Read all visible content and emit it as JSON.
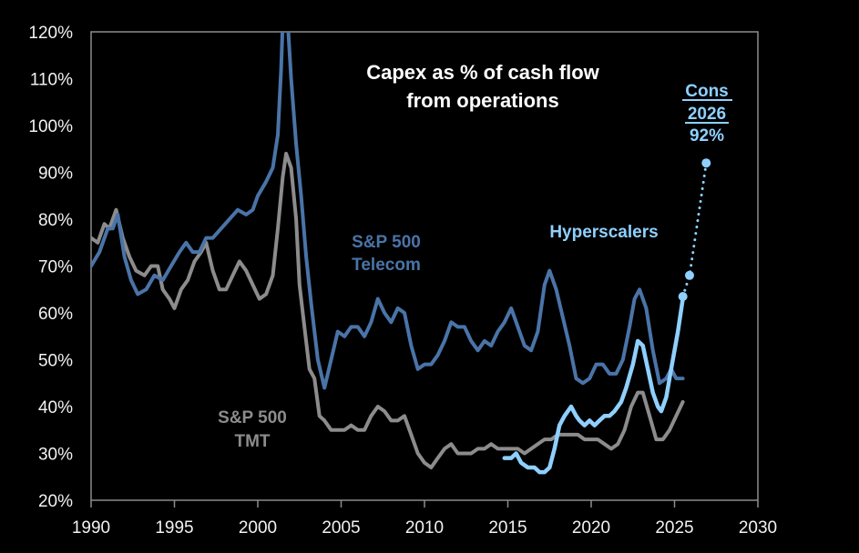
{
  "chart_data": {
    "type": "line",
    "title": [
      "Capex as % of cash flow",
      "from operations"
    ],
    "xlabel": "",
    "ylabel": "",
    "xlim": [
      1990,
      2030
    ],
    "ylim": [
      20,
      120
    ],
    "x_ticks": [
      1990,
      1995,
      2000,
      2005,
      2010,
      2015,
      2020,
      2025,
      2030
    ],
    "x_tick_labels": [
      "1990",
      "1995",
      "2000",
      "2005",
      "2010",
      "2015",
      "2020",
      "2025",
      "2030"
    ],
    "y_ticks": [
      20,
      30,
      40,
      50,
      60,
      70,
      80,
      90,
      100,
      110,
      120
    ],
    "y_tick_labels": [
      "20%",
      "30%",
      "40%",
      "50%",
      "60%",
      "70%",
      "80%",
      "90%",
      "100%",
      "110%",
      "120%"
    ],
    "grid": false,
    "colors": {
      "telecom": "#4a74a8",
      "tmt": "#8c8c8c",
      "hyperscalers": "#8fd0ff",
      "background": "#000000",
      "axis": "#8c8c8c"
    },
    "series": [
      {
        "name": "S&P 500 Telecom",
        "label_lines": [
          "S&P 500",
          "Telecom"
        ],
        "points": [
          [
            1990.0,
            70
          ],
          [
            1990.5,
            73
          ],
          [
            1991.0,
            78
          ],
          [
            1991.3,
            78
          ],
          [
            1991.6,
            81
          ],
          [
            1992.0,
            72
          ],
          [
            1992.4,
            67
          ],
          [
            1992.8,
            64
          ],
          [
            1993.3,
            65
          ],
          [
            1993.8,
            68
          ],
          [
            1994.3,
            67
          ],
          [
            1994.8,
            70
          ],
          [
            1995.3,
            73
          ],
          [
            1995.7,
            75
          ],
          [
            1996.1,
            73
          ],
          [
            1996.5,
            73
          ],
          [
            1996.9,
            76
          ],
          [
            1997.3,
            76
          ],
          [
            1997.8,
            78
          ],
          [
            1998.3,
            80
          ],
          [
            1998.8,
            82
          ],
          [
            1999.3,
            81
          ],
          [
            1999.7,
            82
          ],
          [
            2000.0,
            85
          ],
          [
            2000.5,
            88
          ],
          [
            2000.9,
            91
          ],
          [
            2001.2,
            98
          ],
          [
            2001.4,
            112
          ],
          [
            2001.5,
            122
          ],
          [
            2001.8,
            122
          ],
          [
            2002.0,
            110
          ],
          [
            2002.3,
            96
          ],
          [
            2002.6,
            85
          ],
          [
            2002.9,
            72
          ],
          [
            2003.2,
            62
          ],
          [
            2003.6,
            50
          ],
          [
            2004.0,
            44
          ],
          [
            2004.4,
            50
          ],
          [
            2004.8,
            56
          ],
          [
            2005.2,
            55
          ],
          [
            2005.6,
            57
          ],
          [
            2006.0,
            57
          ],
          [
            2006.4,
            55
          ],
          [
            2006.8,
            58
          ],
          [
            2007.2,
            63
          ],
          [
            2007.6,
            60
          ],
          [
            2008.0,
            58
          ],
          [
            2008.4,
            61
          ],
          [
            2008.8,
            60
          ],
          [
            2009.2,
            53
          ],
          [
            2009.6,
            48
          ],
          [
            2010.0,
            49
          ],
          [
            2010.4,
            49
          ],
          [
            2010.8,
            51
          ],
          [
            2011.2,
            54
          ],
          [
            2011.6,
            58
          ],
          [
            2012.0,
            57
          ],
          [
            2012.4,
            57
          ],
          [
            2012.8,
            54
          ],
          [
            2013.2,
            52
          ],
          [
            2013.6,
            54
          ],
          [
            2014.0,
            53
          ],
          [
            2014.4,
            56
          ],
          [
            2014.8,
            58
          ],
          [
            2015.2,
            61
          ],
          [
            2015.6,
            57
          ],
          [
            2016.0,
            53
          ],
          [
            2016.4,
            52
          ],
          [
            2016.8,
            56
          ],
          [
            2017.2,
            66
          ],
          [
            2017.5,
            69
          ],
          [
            2017.9,
            65
          ],
          [
            2018.3,
            59
          ],
          [
            2018.7,
            53
          ],
          [
            2019.1,
            46
          ],
          [
            2019.5,
            45
          ],
          [
            2019.9,
            46
          ],
          [
            2020.3,
            49
          ],
          [
            2020.7,
            49
          ],
          [
            2021.1,
            47
          ],
          [
            2021.5,
            47
          ],
          [
            2021.9,
            50
          ],
          [
            2022.3,
            57
          ],
          [
            2022.6,
            63
          ],
          [
            2022.9,
            65
          ],
          [
            2023.3,
            61
          ],
          [
            2023.7,
            52
          ],
          [
            2024.1,
            45
          ],
          [
            2024.5,
            46
          ],
          [
            2024.8,
            48
          ],
          [
            2025.1,
            46
          ],
          [
            2025.5,
            46
          ]
        ]
      },
      {
        "name": "S&P 500 TMT",
        "label_lines": [
          "S&P 500",
          "TMT"
        ],
        "points": [
          [
            1990.0,
            76
          ],
          [
            1990.4,
            75
          ],
          [
            1990.8,
            79
          ],
          [
            1991.1,
            78
          ],
          [
            1991.5,
            82
          ],
          [
            1991.9,
            76
          ],
          [
            1992.3,
            72
          ],
          [
            1992.7,
            69
          ],
          [
            1993.2,
            68
          ],
          [
            1993.6,
            70
          ],
          [
            1994.0,
            70
          ],
          [
            1994.3,
            65
          ],
          [
            1994.7,
            63
          ],
          [
            1995.0,
            61
          ],
          [
            1995.4,
            65
          ],
          [
            1995.8,
            67
          ],
          [
            1996.2,
            71
          ],
          [
            1996.6,
            73
          ],
          [
            1996.9,
            75
          ],
          [
            1997.3,
            69
          ],
          [
            1997.7,
            65
          ],
          [
            1998.1,
            65
          ],
          [
            1998.5,
            68
          ],
          [
            1998.9,
            71
          ],
          [
            1999.3,
            69
          ],
          [
            1999.7,
            66
          ],
          [
            2000.1,
            63
          ],
          [
            2000.5,
            64
          ],
          [
            2000.9,
            68
          ],
          [
            2001.2,
            78
          ],
          [
            2001.5,
            89
          ],
          [
            2001.7,
            94
          ],
          [
            2002.0,
            91
          ],
          [
            2002.3,
            80
          ],
          [
            2002.5,
            66
          ],
          [
            2002.8,
            57
          ],
          [
            2003.1,
            48
          ],
          [
            2003.4,
            46
          ],
          [
            2003.7,
            38
          ],
          [
            2004.0,
            37
          ],
          [
            2004.4,
            35
          ],
          [
            2004.8,
            35
          ],
          [
            2005.2,
            35
          ],
          [
            2005.6,
            36
          ],
          [
            2006.0,
            35
          ],
          [
            2006.4,
            35
          ],
          [
            2006.8,
            38
          ],
          [
            2007.2,
            40
          ],
          [
            2007.6,
            39
          ],
          [
            2008.0,
            37
          ],
          [
            2008.4,
            37
          ],
          [
            2008.8,
            38
          ],
          [
            2009.2,
            34
          ],
          [
            2009.6,
            30
          ],
          [
            2010.0,
            28
          ],
          [
            2010.4,
            27
          ],
          [
            2010.8,
            29
          ],
          [
            2011.2,
            31
          ],
          [
            2011.6,
            32
          ],
          [
            2012.0,
            30
          ],
          [
            2012.4,
            30
          ],
          [
            2012.8,
            30
          ],
          [
            2013.2,
            31
          ],
          [
            2013.6,
            31
          ],
          [
            2014.0,
            32
          ],
          [
            2014.4,
            31
          ],
          [
            2014.8,
            31
          ],
          [
            2015.2,
            31
          ],
          [
            2015.6,
            31
          ],
          [
            2016.0,
            30
          ],
          [
            2016.4,
            31
          ],
          [
            2016.8,
            32
          ],
          [
            2017.2,
            33
          ],
          [
            2017.6,
            33
          ],
          [
            2018.0,
            34
          ],
          [
            2018.4,
            34
          ],
          [
            2018.8,
            34
          ],
          [
            2019.2,
            34
          ],
          [
            2019.6,
            33
          ],
          [
            2020.0,
            33
          ],
          [
            2020.4,
            33
          ],
          [
            2020.8,
            32
          ],
          [
            2021.2,
            31
          ],
          [
            2021.6,
            32
          ],
          [
            2022.0,
            35
          ],
          [
            2022.4,
            40
          ],
          [
            2022.8,
            43
          ],
          [
            2023.1,
            43
          ],
          [
            2023.5,
            38
          ],
          [
            2023.9,
            33
          ],
          [
            2024.3,
            33
          ],
          [
            2024.7,
            35
          ],
          [
            2025.1,
            38
          ],
          [
            2025.5,
            41
          ]
        ]
      },
      {
        "name": "Hyperscalers",
        "label_lines": [
          "Hyperscalers"
        ],
        "points": [
          [
            2014.8,
            29
          ],
          [
            2015.2,
            29
          ],
          [
            2015.5,
            30
          ],
          [
            2015.8,
            28
          ],
          [
            2016.2,
            27
          ],
          [
            2016.6,
            27
          ],
          [
            2016.9,
            26
          ],
          [
            2017.2,
            26
          ],
          [
            2017.5,
            27
          ],
          [
            2017.8,
            31
          ],
          [
            2018.1,
            36
          ],
          [
            2018.4,
            38
          ],
          [
            2018.8,
            40
          ],
          [
            2019.1,
            38
          ],
          [
            2019.3,
            37
          ],
          [
            2019.6,
            36
          ],
          [
            2019.9,
            37
          ],
          [
            2020.2,
            36
          ],
          [
            2020.5,
            37
          ],
          [
            2020.8,
            38
          ],
          [
            2021.1,
            38
          ],
          [
            2021.4,
            39
          ],
          [
            2021.8,
            41
          ],
          [
            2022.1,
            44
          ],
          [
            2022.5,
            49
          ],
          [
            2022.8,
            54
          ],
          [
            2023.1,
            53
          ],
          [
            2023.4,
            48
          ],
          [
            2023.7,
            43
          ],
          [
            2024.0,
            40
          ],
          [
            2024.2,
            39
          ],
          [
            2024.5,
            42
          ],
          [
            2024.8,
            48
          ],
          [
            2025.2,
            56
          ],
          [
            2025.5,
            63
          ]
        ],
        "projection": [
          [
            2025.5,
            63.5
          ],
          [
            2025.9,
            68
          ],
          [
            2026.9,
            92
          ]
        ],
        "annotation": {
          "lines": [
            "Cons",
            "2026",
            "92%"
          ],
          "underlined": [
            "Cons",
            "2026"
          ]
        }
      }
    ]
  }
}
